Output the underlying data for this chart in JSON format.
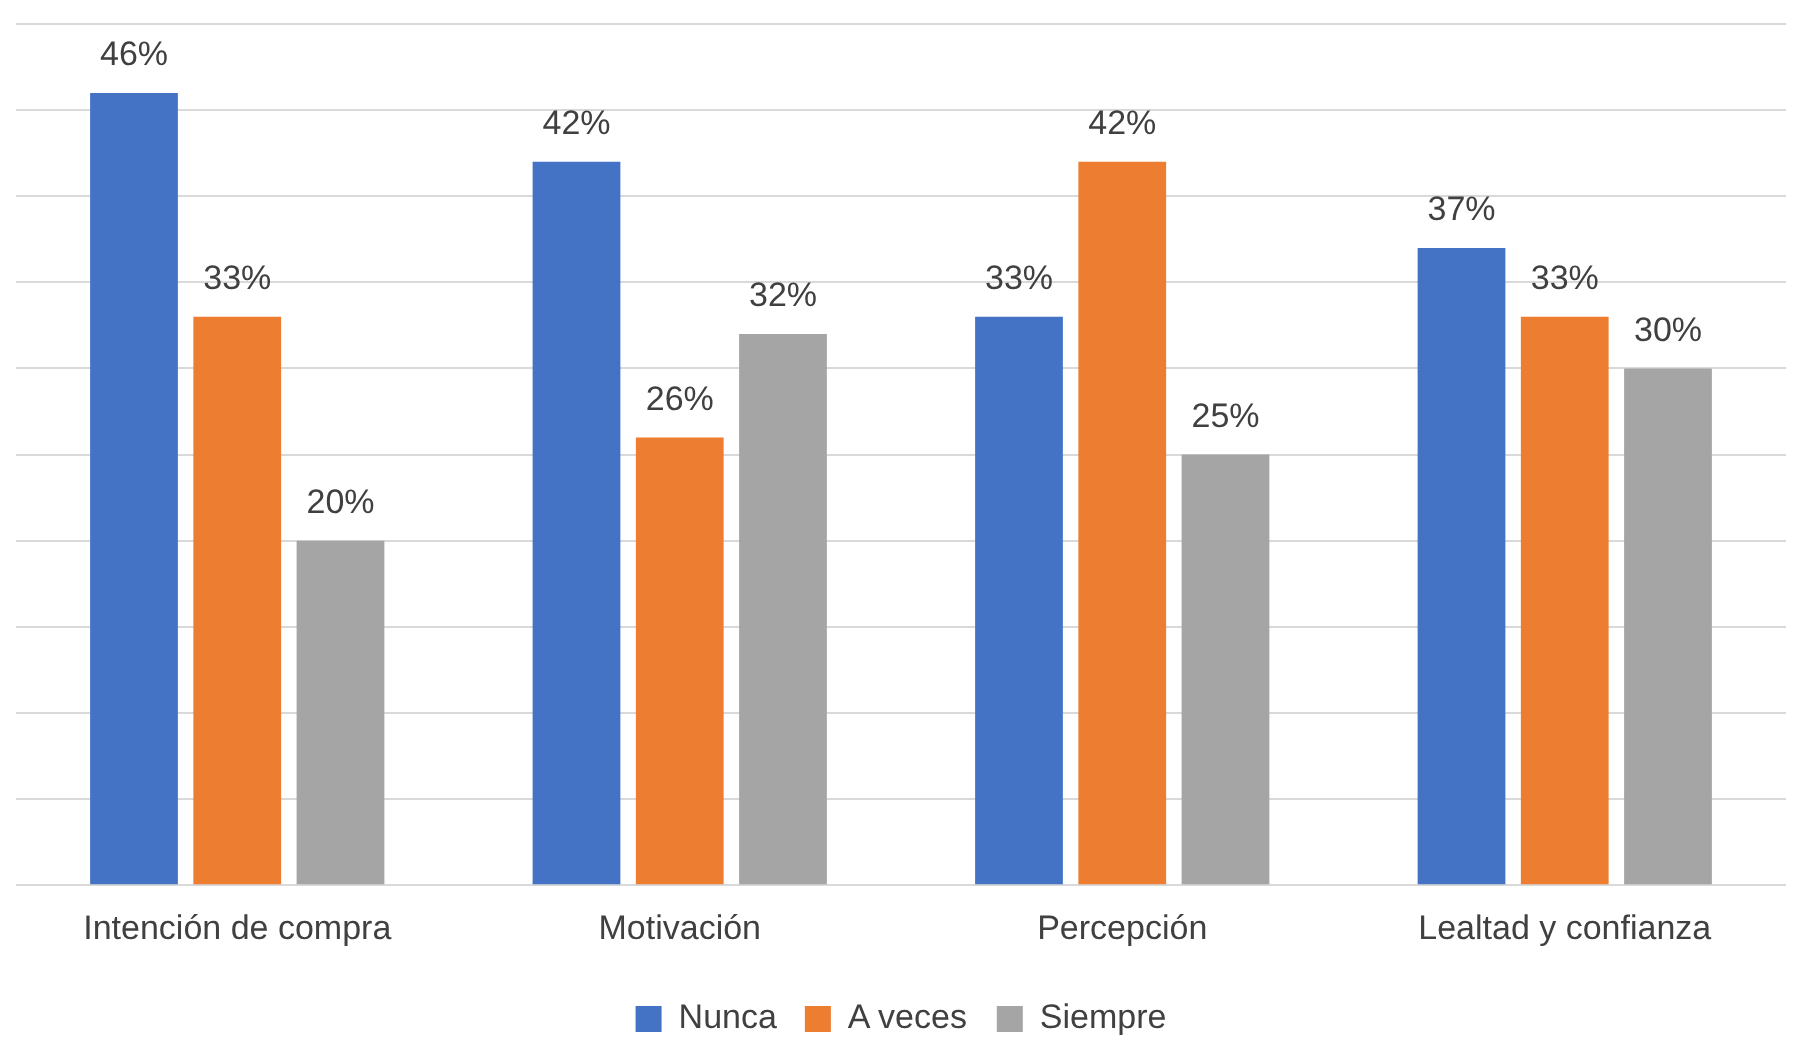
{
  "chart_data": {
    "type": "bar",
    "categories": [
      "Intención de compra",
      "Motivación",
      "Percepción",
      "Lealtad y confianza"
    ],
    "series": [
      {
        "name": "Nunca",
        "color": "#4472c4",
        "values": [
          46,
          42,
          33,
          37
        ],
        "value_labels": [
          "46%",
          "42%",
          "33%",
          "37%"
        ]
      },
      {
        "name": "A veces",
        "color": "#ed7d31",
        "values": [
          33,
          26,
          42,
          33
        ],
        "value_labels": [
          "33%",
          "26%",
          "42%",
          "33%"
        ]
      },
      {
        "name": "Siempre",
        "color": "#a5a5a5",
        "values": [
          20,
          32,
          25,
          30
        ],
        "value_labels": [
          "20%",
          "32%",
          "25%",
          "30%"
        ]
      }
    ],
    "ylim": [
      0,
      50
    ],
    "yticks": [
      {
        "value": 0,
        "label": null
      },
      {
        "value": 5,
        "label": null
      },
      {
        "value": 10,
        "label": null
      },
      {
        "value": 15,
        "label": null
      },
      {
        "value": 20,
        "label": null
      },
      {
        "value": 25,
        "label": null
      },
      {
        "value": 30,
        "label": null
      },
      {
        "value": 35,
        "label": null
      },
      {
        "value": 40,
        "label": null
      },
      {
        "value": 45,
        "label": null
      },
      {
        "value": 50,
        "label": null
      }
    ],
    "tick_labels": "x",
    "grid": "y",
    "legend": "bottom"
  }
}
